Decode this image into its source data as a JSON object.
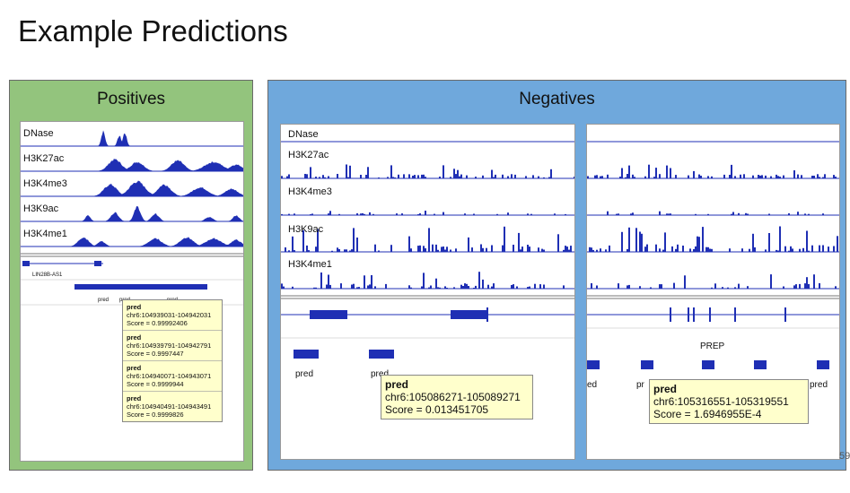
{
  "slide": {
    "title": "Example Predictions",
    "page_number": "59"
  },
  "colors": {
    "positives_bg": "#93c47d",
    "negatives_bg": "#6fa8dc",
    "signal": "#1f2fb4",
    "tooltip_bg": "#ffffcc"
  },
  "positives": {
    "heading": "Positives",
    "tracks": [
      "DNase",
      "H3K27ac",
      "H3K4me3",
      "H3K9ac",
      "H3K4me1"
    ],
    "gene": "LIN28B-AS1",
    "pred_labels": [
      "pred",
      "pred",
      "pred"
    ],
    "tooltip": [
      {
        "name": "pred",
        "locus": "chr6:104939031-104942031",
        "score": "Score = 0.99992406"
      },
      {
        "name": "pred",
        "locus": "chr6:104939791-104942791",
        "score": "Score = 0.9997447"
      },
      {
        "name": "pred",
        "locus": "chr6:104940071-104943071",
        "score": "Score = 0.9999944"
      },
      {
        "name": "pred",
        "locus": "chr6:104940491-104943491",
        "score": "Score = 0.9999826"
      }
    ]
  },
  "negatives": {
    "heading": "Negatives",
    "tracks": [
      "DNase",
      "H3K27ac",
      "H3K4me3",
      "H3K9ac",
      "H3K4me1"
    ],
    "left": {
      "pred_labels": [
        "pred",
        "pred"
      ],
      "tooltip": {
        "name": "pred",
        "locus": "chr6:105086271-105089271",
        "score": "Score = 0.013451705"
      }
    },
    "right": {
      "gene": "PREP",
      "pred_labels": [
        "ed",
        "pr",
        "pred"
      ],
      "tooltip": {
        "name": "pred",
        "locus": "chr6:105316551-105319551",
        "score": "Score = 1.6946955E-4"
      }
    }
  }
}
